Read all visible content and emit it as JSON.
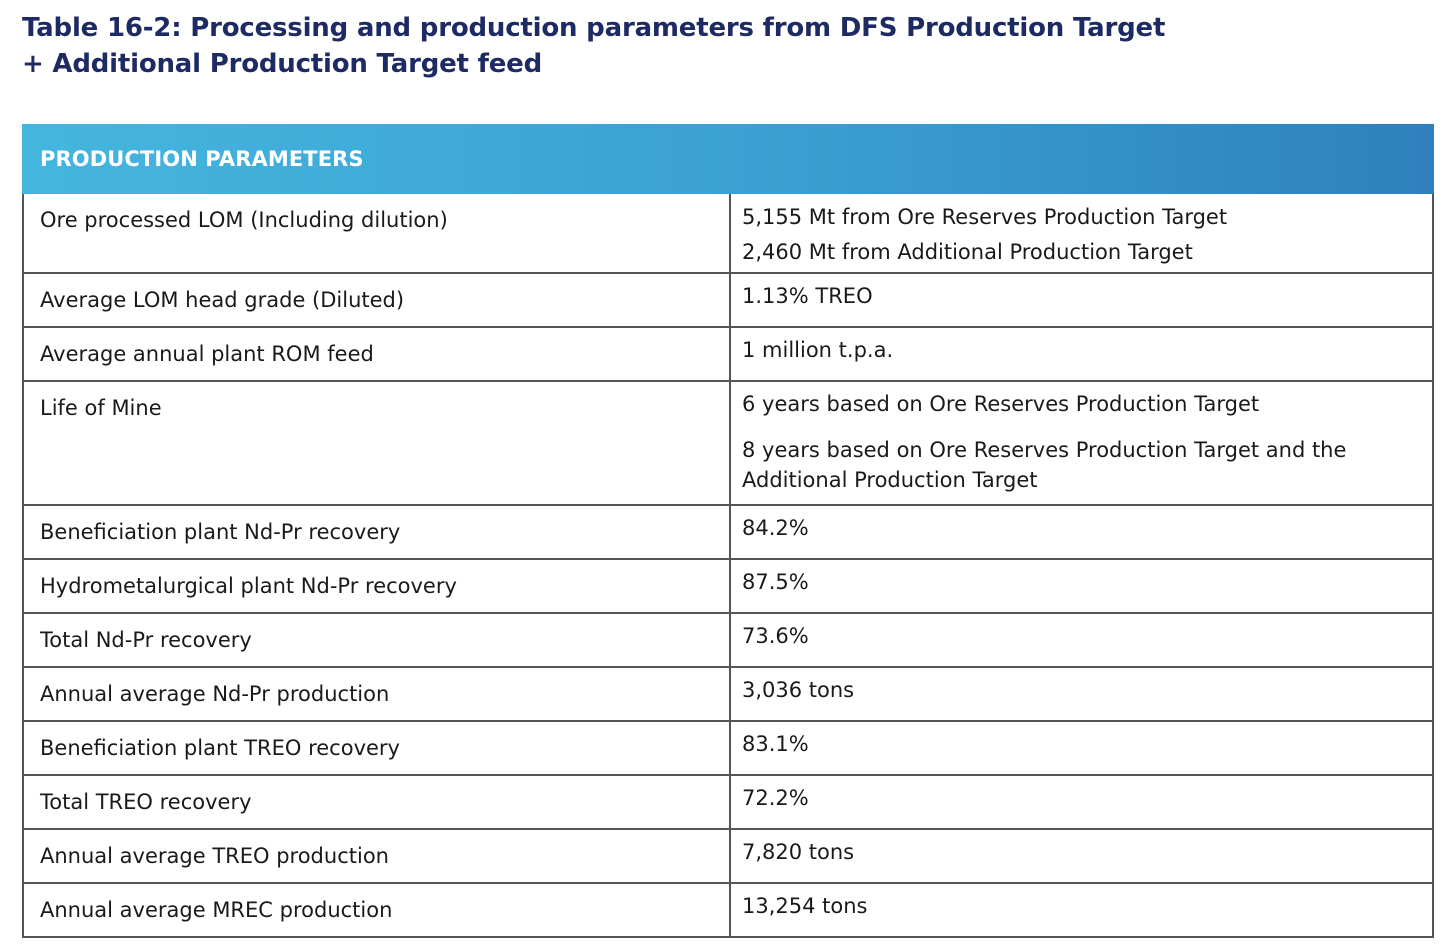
{
  "caption": {
    "line1": "Table 16-2: Processing and production parameters from DFS Production Target",
    "line2": "+ Additional Production Target feed"
  },
  "table": {
    "header": "PRODUCTION PARAMETERS",
    "rows": [
      {
        "parameter": "Ore processed LOM (Including dilution)",
        "values": [
          "5,155 Mt from Ore Reserves Production Target",
          "2,460 Mt from Additional Production Target"
        ]
      },
      {
        "parameter": "Average LOM head grade (Diluted)",
        "values": [
          "1.13% TREO"
        ]
      },
      {
        "parameter": "Average annual plant ROM feed",
        "values": [
          "1 million t.p.a."
        ]
      },
      {
        "parameter": "Life of Mine",
        "values": [
          "6 years based on Ore Reserves Production Target",
          "8 years based on Ore Reserves Production Target and the",
          "Additional Production Target"
        ]
      },
      {
        "parameter": "Beneficiation plant Nd-Pr recovery",
        "values": [
          "84.2%"
        ]
      },
      {
        "parameter": "Hydrometalurgical plant Nd-Pr recovery",
        "values": [
          "87.5%"
        ]
      },
      {
        "parameter": "Total Nd-Pr recovery",
        "values": [
          "73.6%"
        ]
      },
      {
        "parameter": "Annual average Nd-Pr production",
        "values": [
          "3,036 tons"
        ]
      },
      {
        "parameter": "Beneficiation plant TREO recovery",
        "values": [
          "83.1%"
        ]
      },
      {
        "parameter": "Total TREO recovery",
        "values": [
          "72.2%"
        ]
      },
      {
        "parameter": "Annual average TREO production",
        "values": [
          "7,820 tons"
        ]
      },
      {
        "parameter": "Annual average MREC production",
        "values": [
          "13,254 tons"
        ]
      }
    ]
  }
}
